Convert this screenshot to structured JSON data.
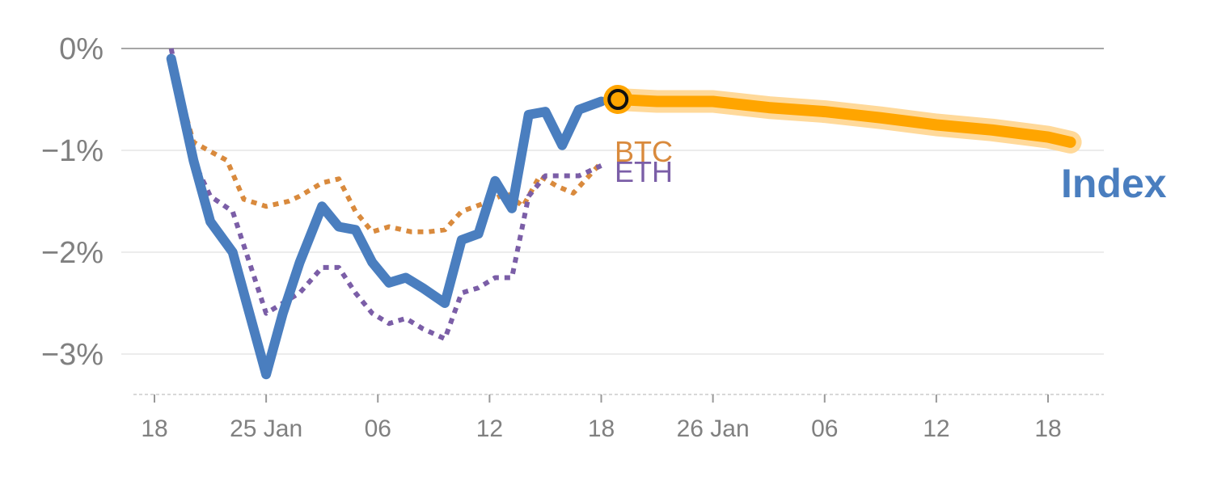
{
  "chart_data": {
    "type": "line",
    "title": "",
    "xlabel": "",
    "ylabel": "",
    "ylim": [
      -3.4,
      0
    ],
    "yticks": [
      {
        "value": 0,
        "label": "0%"
      },
      {
        "value": -1,
        "label": "−1%"
      },
      {
        "value": -2,
        "label": "−2%"
      },
      {
        "value": -3,
        "label": "−3%"
      }
    ],
    "xticks": [
      {
        "index": 0,
        "label": "18"
      },
      {
        "index": 10,
        "label": "25 Jan"
      },
      {
        "index": 20,
        "label": "06"
      },
      {
        "index": 30,
        "label": "12"
      },
      {
        "index": 40,
        "label": "18"
      },
      {
        "index": 50,
        "label": "26 Jan"
      },
      {
        "index": 60,
        "label": "06"
      },
      {
        "index": 70,
        "label": "12"
      },
      {
        "index": 80,
        "label": "18"
      }
    ],
    "xlim": [
      0,
      85
    ],
    "series": [
      {
        "name": "Index",
        "label": "Index",
        "color": "#4a7ebf",
        "style": "solid",
        "points": [
          [
            1.5,
            -0.1
          ],
          [
            3.5,
            -1.1
          ],
          [
            5,
            -1.7
          ],
          [
            7,
            -2.0
          ],
          [
            8.5,
            -2.6
          ],
          [
            10,
            -3.2
          ],
          [
            11.5,
            -2.6
          ],
          [
            13,
            -2.1
          ],
          [
            15,
            -1.55
          ],
          [
            16.5,
            -1.75
          ],
          [
            18,
            -1.78
          ],
          [
            19.5,
            -2.1
          ],
          [
            21,
            -2.3
          ],
          [
            22.5,
            -2.25
          ],
          [
            24,
            -2.35
          ],
          [
            26,
            -2.5
          ],
          [
            27.5,
            -1.88
          ],
          [
            29,
            -1.82
          ],
          [
            30.5,
            -1.3
          ],
          [
            32,
            -1.57
          ],
          [
            33.5,
            -0.65
          ],
          [
            35,
            -0.62
          ],
          [
            36.5,
            -0.95
          ],
          [
            38,
            -0.6
          ],
          [
            40,
            -0.52
          ]
        ]
      },
      {
        "name": "BTC",
        "label": "BTC",
        "color": "#d98a3d",
        "style": "dotted",
        "points": [
          [
            1.5,
            -0.15
          ],
          [
            3.5,
            -0.92
          ],
          [
            6.5,
            -1.1
          ],
          [
            8,
            -1.48
          ],
          [
            10,
            -1.55
          ],
          [
            12,
            -1.5
          ],
          [
            13,
            -1.45
          ],
          [
            15,
            -1.32
          ],
          [
            16.5,
            -1.28
          ],
          [
            18,
            -1.6
          ],
          [
            19.5,
            -1.8
          ],
          [
            21,
            -1.75
          ],
          [
            23,
            -1.8
          ],
          [
            24.5,
            -1.8
          ],
          [
            26,
            -1.78
          ],
          [
            27.5,
            -1.6
          ],
          [
            30,
            -1.5
          ],
          [
            31.5,
            -1.42
          ],
          [
            33,
            -1.55
          ],
          [
            34.5,
            -1.25
          ],
          [
            36,
            -1.35
          ],
          [
            37.5,
            -1.42
          ],
          [
            40,
            -1.12
          ]
        ]
      },
      {
        "name": "ETH",
        "label": "ETH",
        "color": "#7b5ea7",
        "style": "dotted",
        "points": [
          [
            1.5,
            0
          ],
          [
            3.5,
            -1.1
          ],
          [
            5,
            -1.45
          ],
          [
            7,
            -1.6
          ],
          [
            8.5,
            -2.1
          ],
          [
            10,
            -2.6
          ],
          [
            11.5,
            -2.5
          ],
          [
            13,
            -2.4
          ],
          [
            15,
            -2.15
          ],
          [
            16.5,
            -2.15
          ],
          [
            18,
            -2.4
          ],
          [
            19.5,
            -2.6
          ],
          [
            21,
            -2.7
          ],
          [
            22.5,
            -2.65
          ],
          [
            24,
            -2.75
          ],
          [
            26,
            -2.85
          ],
          [
            27.5,
            -2.4
          ],
          [
            29,
            -2.35
          ],
          [
            30.5,
            -2.25
          ],
          [
            32,
            -2.25
          ],
          [
            33.5,
            -1.45
          ],
          [
            35,
            -1.25
          ],
          [
            36.5,
            -1.25
          ],
          [
            38,
            -1.25
          ],
          [
            40,
            -1.15
          ]
        ]
      },
      {
        "name": "Index projection",
        "color": "#ffa500",
        "style": "projection",
        "points": [
          [
            41.5,
            -0.5
          ],
          [
            45,
            -0.52
          ],
          [
            50,
            -0.52
          ],
          [
            55,
            -0.58
          ],
          [
            60,
            -0.62
          ],
          [
            65,
            -0.68
          ],
          [
            70,
            -0.75
          ],
          [
            75,
            -0.8
          ],
          [
            80,
            -0.87
          ],
          [
            82,
            -0.92
          ]
        ]
      }
    ],
    "marker": {
      "x": 41.5,
      "y": -0.5,
      "fill": "#ffa500",
      "stroke": "#111111"
    },
    "labels": {
      "btc": "BTC",
      "eth": "ETH",
      "index": "Index"
    }
  }
}
